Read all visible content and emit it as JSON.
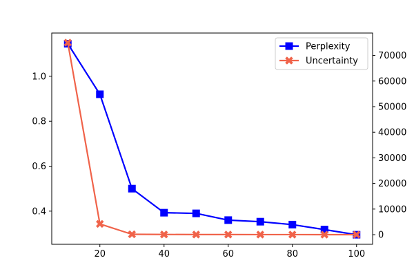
{
  "chart_data": {
    "type": "line",
    "x": [
      10,
      20,
      30,
      40,
      50,
      60,
      70,
      80,
      90,
      100
    ],
    "xticks": [
      20,
      40,
      60,
      80,
      100
    ],
    "xlim": [
      5,
      105
    ],
    "left_axis": {
      "ylim": [
        0.2525,
        1.1925
      ],
      "ticks": [
        0.4,
        0.6,
        0.8,
        1.0
      ],
      "tick_labels": [
        "0.4",
        "0.6",
        "0.8",
        "1.0"
      ]
    },
    "right_axis": {
      "ylim": [
        -3750,
        78750
      ],
      "ticks": [
        0,
        10000,
        20000,
        30000,
        40000,
        50000,
        60000,
        70000
      ],
      "tick_labels": [
        "0",
        "10000",
        "20000",
        "30000",
        "40000",
        "50000",
        "60000",
        "70000"
      ]
    },
    "legend_position": "top-right",
    "grid": false,
    "series": [
      {
        "name": "Perplexity",
        "axis": "left",
        "color": "#0000ff",
        "marker": "square",
        "values": [
          1.145,
          0.92,
          0.5,
          0.393,
          0.39,
          0.36,
          0.353,
          0.34,
          0.318,
          0.295
        ]
      },
      {
        "name": "Uncertainty",
        "axis": "right",
        "color": "#f0634a",
        "marker": "x-filled",
        "values": [
          75000,
          4200,
          150,
          80,
          50,
          40,
          30,
          25,
          20,
          15
        ]
      }
    ]
  }
}
